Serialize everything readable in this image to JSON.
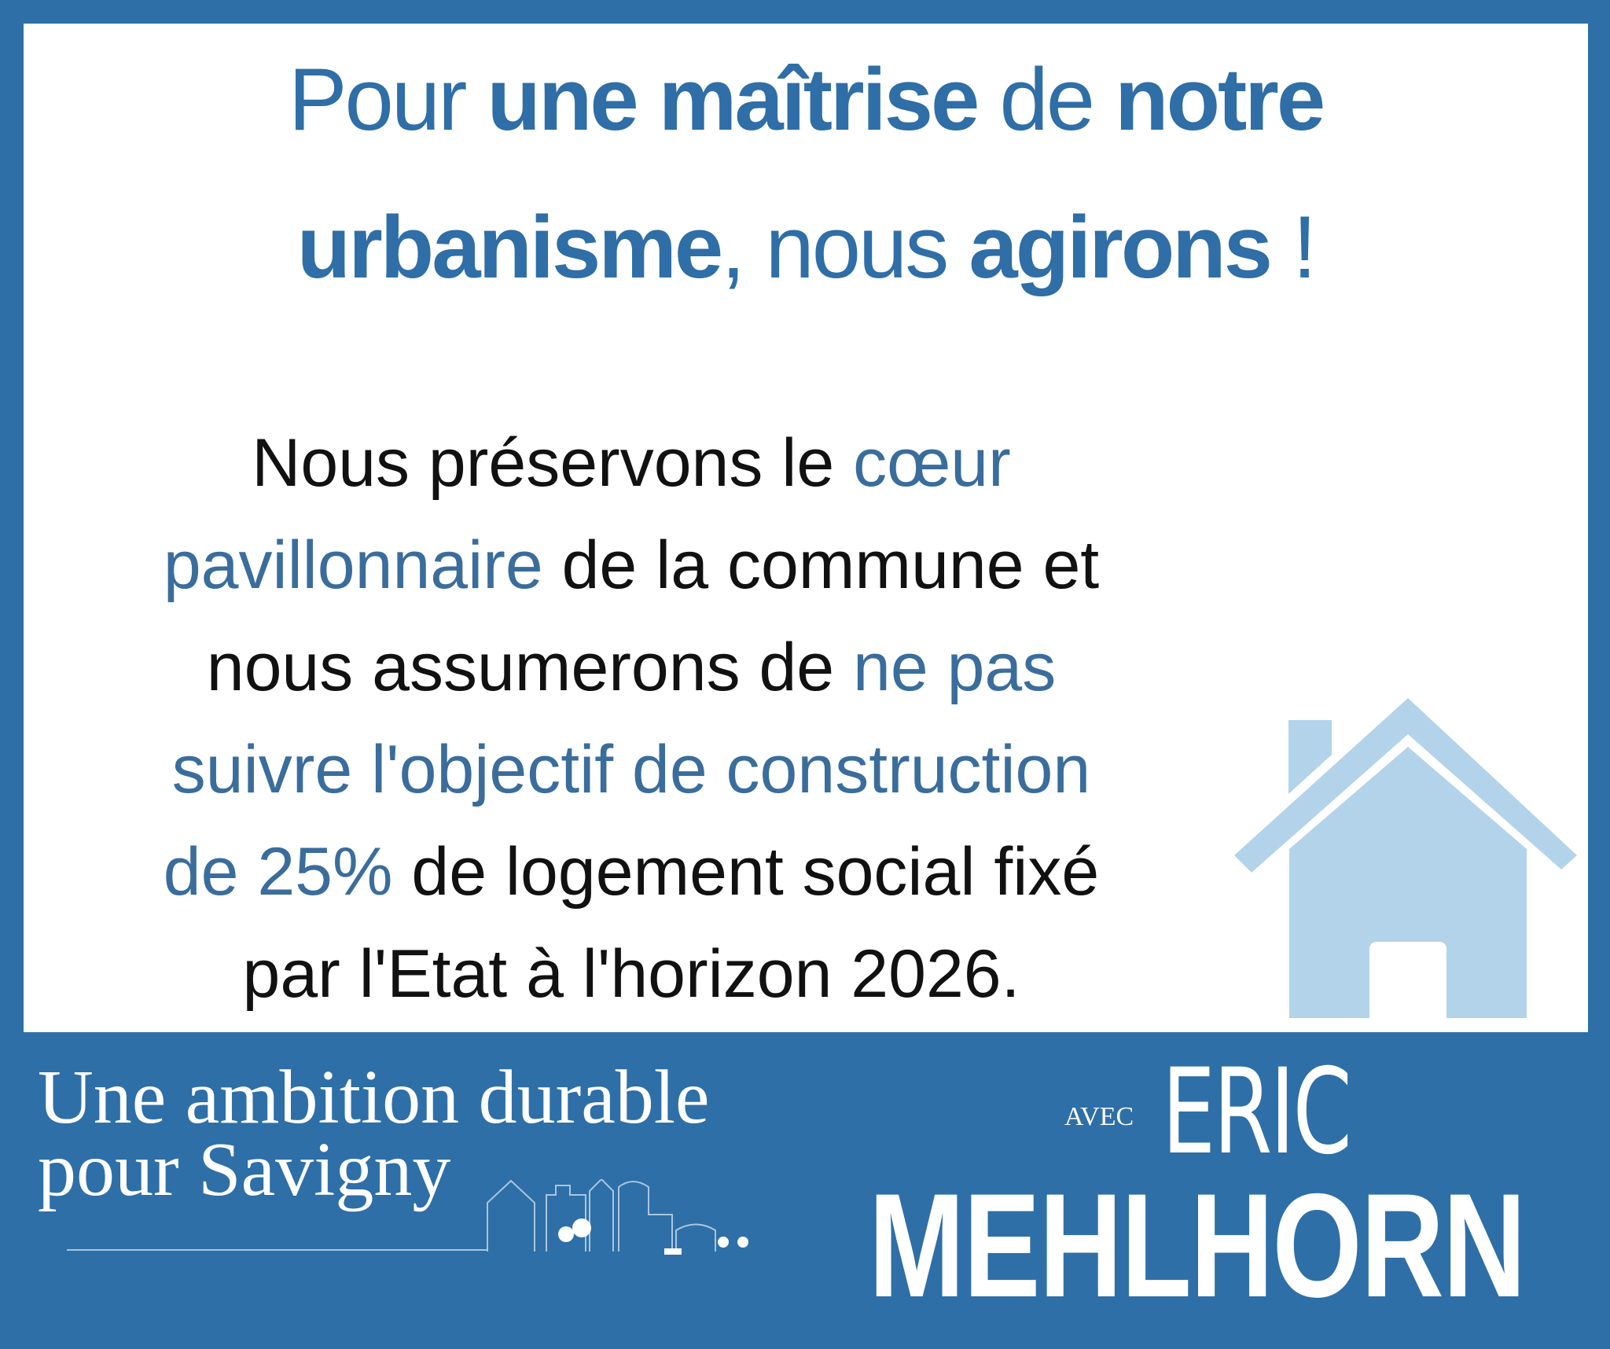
{
  "colors": {
    "frame": "#2e6fa7",
    "title": "#2f6ea6",
    "highlight": "#3a6d9c",
    "house": "#b3d3ea"
  },
  "title": {
    "line1": {
      "a": "Pour ",
      "b": "une maîtrise",
      "c": " de ",
      "d": "notre"
    },
    "line2": {
      "a": "urbanisme",
      "b": ", nous ",
      "c": "agirons",
      "d": " !"
    }
  },
  "body": {
    "l1": {
      "a": "Nous préservons le ",
      "b": "cœur"
    },
    "l2": {
      "a": "pavillonnaire",
      "b": " de la commune et"
    },
    "l3": {
      "a": "nous assumerons de ",
      "b": "ne pas"
    },
    "l4": {
      "a": "suivre l'objectif de construction"
    },
    "l5": {
      "a": "de 25%",
      "b": " de logement social fixé"
    },
    "l6": {
      "a": "par l'Etat à l'horizon 2026."
    }
  },
  "house_icon": "house-icon",
  "footer": {
    "slogan_line1": "Une ambition durable",
    "slogan_line2": "pour Savigny",
    "avec": "AVEC",
    "first_name": "ERIC",
    "last_name": "MEHLHORN"
  }
}
